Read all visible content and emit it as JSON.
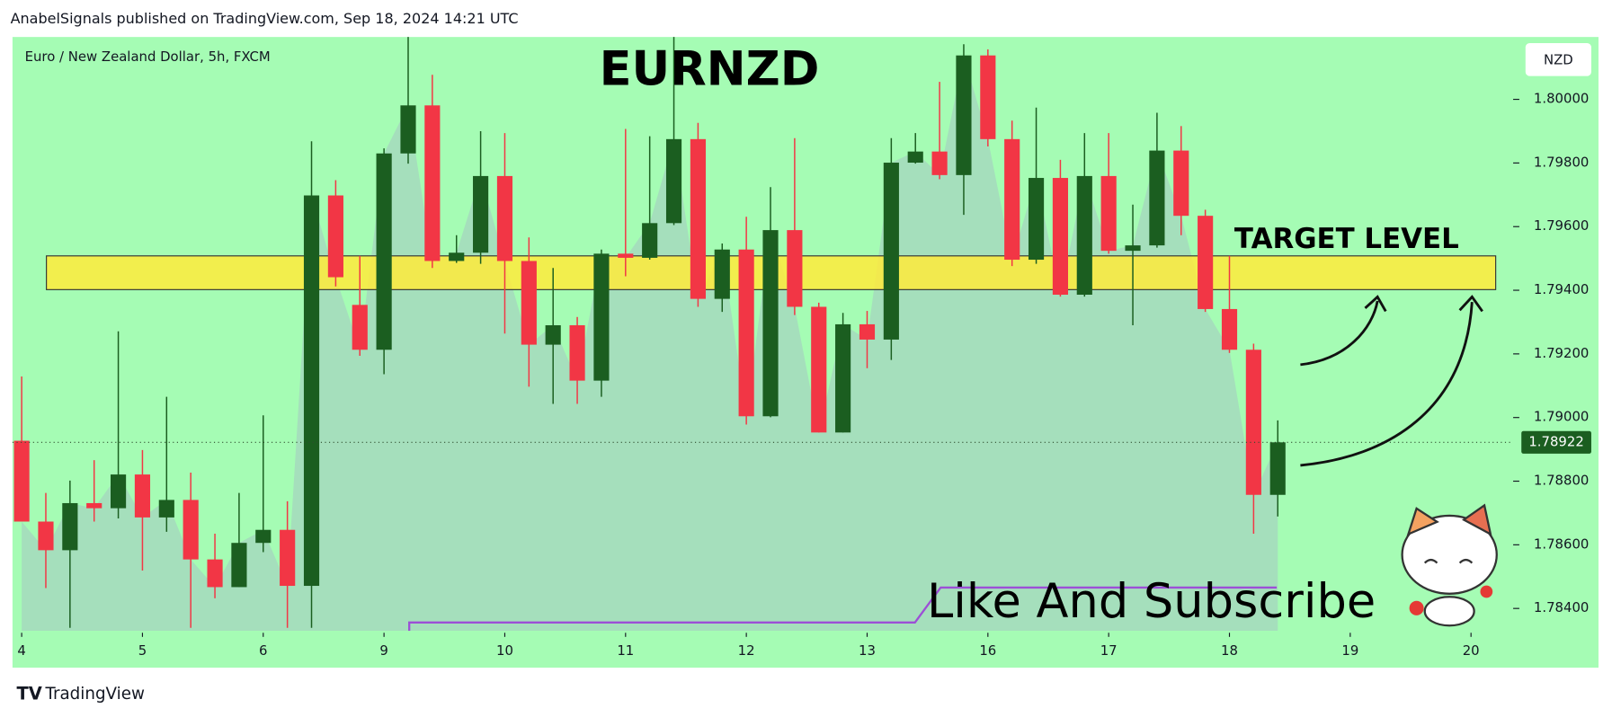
{
  "header": "AnabelSignals published on TradingView.com, Sep 18, 2024 14:21 UTC",
  "footer": "TradingView",
  "chart_data": {
    "type": "candlestick",
    "title": "EURNZD",
    "symbol": "Euro / New Zealand Dollar, 5h, FXCM",
    "currency": "NZD",
    "annotation": "Like And Subscribe",
    "target_zone": {
      "label": "TARGET LEVEL",
      "low": 1.79402,
      "high": 1.79508,
      "color": "#ffeb3b"
    },
    "up_color": "#1b5e20",
    "down_color": "#f23645",
    "xlim": [
      -0.38,
      61.66
    ],
    "xticks": [
      {
        "value": 0,
        "label": "4"
      },
      {
        "value": 5,
        "label": "5"
      },
      {
        "value": 10,
        "label": "6"
      },
      {
        "value": 15,
        "label": "9"
      },
      {
        "value": 20,
        "label": "10"
      },
      {
        "value": 25,
        "label": "11"
      },
      {
        "value": 30,
        "label": "12"
      },
      {
        "value": 35,
        "label": "13"
      },
      {
        "value": 40,
        "label": "16"
      },
      {
        "value": 45,
        "label": "17"
      },
      {
        "value": 50,
        "label": "18"
      },
      {
        "value": 55,
        "label": "19"
      },
      {
        "value": 60,
        "label": "20"
      }
    ],
    "ylim": [
      1.7833,
      1.80196
    ],
    "yticks": [
      {
        "value": 1.784,
        "label": "1.78400"
      },
      {
        "value": 1.786,
        "label": "1.78600"
      },
      {
        "value": 1.788,
        "label": "1.78800"
      },
      {
        "value": 1.79,
        "label": "1.79000"
      },
      {
        "value": 1.792,
        "label": "1.79200"
      },
      {
        "value": 1.794,
        "label": "1.79400"
      },
      {
        "value": 1.796,
        "label": "1.79600"
      },
      {
        "value": 1.798,
        "label": "1.79800"
      },
      {
        "value": 1.8,
        "label": "1.80000"
      }
    ],
    "open": [
      1.78927,
      1.78673,
      1.78583,
      1.78731,
      1.78715,
      1.78821,
      1.78686,
      1.78741,
      1.78554,
      1.78467,
      1.78606,
      1.78647,
      1.78471,
      1.79698,
      1.79354,
      1.79213,
      1.7983,
      1.79981,
      1.79492,
      1.79518,
      1.79759,
      1.79492,
      1.79229,
      1.7929,
      1.79116,
      1.79515,
      1.79502,
      1.79611,
      1.79875,
      1.79373,
      1.79528,
      1.79004,
      1.79589,
      1.79348,
      1.78953,
      1.79293,
      1.79245,
      1.79801,
      1.79836,
      1.79762,
      1.80138,
      1.79875,
      1.79496,
      1.79753,
      1.79386,
      1.79759,
      1.79524,
      1.79541,
      1.79839,
      1.79634,
      1.79341,
      1.79213,
      1.78757
    ],
    "high": [
      1.79129,
      1.78763,
      1.78802,
      1.78866,
      1.79271,
      1.78898,
      1.79065,
      1.78827,
      1.78635,
      1.78763,
      1.79007,
      1.78737,
      1.79868,
      1.79746,
      1.79508,
      1.79846,
      1.80196,
      1.80077,
      1.79573,
      1.799,
      1.79894,
      1.79566,
      1.7947,
      1.79316,
      1.79528,
      1.79907,
      1.79884,
      1.80196,
      1.79926,
      1.79547,
      1.79631,
      1.79724,
      1.79878,
      1.79361,
      1.79329,
      1.79335,
      1.79878,
      1.79894,
      1.80055,
      1.80173,
      1.80157,
      1.79933,
      1.79974,
      1.7981,
      1.79894,
      1.79894,
      1.79669,
      1.79958,
      1.79916,
      1.79653,
      1.79508,
      1.79232,
      1.78991
    ],
    "low": [
      1.78673,
      1.78464,
      1.78339,
      1.78673,
      1.78683,
      1.78519,
      1.78641,
      1.78339,
      1.78432,
      1.78467,
      1.78577,
      1.78339,
      1.78339,
      1.79412,
      1.79194,
      1.79136,
      1.79798,
      1.7947,
      1.79486,
      1.79483,
      1.79264,
      1.79097,
      1.79043,
      1.79043,
      1.79065,
      1.79444,
      1.79496,
      1.79605,
      1.79348,
      1.79332,
      1.78978,
      1.79001,
      1.79322,
      1.78953,
      1.78953,
      1.79155,
      1.79181,
      1.79798,
      1.79749,
      1.79637,
      1.79852,
      1.79476,
      1.79483,
      1.7938,
      1.7938,
      1.79515,
      1.7929,
      1.79534,
      1.79573,
      1.79332,
      1.79203,
      1.78635,
      1.78689
    ],
    "close": [
      1.78673,
      1.78583,
      1.78731,
      1.78715,
      1.78821,
      1.78686,
      1.78741,
      1.78554,
      1.78467,
      1.78606,
      1.78647,
      1.78471,
      1.79698,
      1.79441,
      1.79213,
      1.7983,
      1.79981,
      1.79492,
      1.79518,
      1.79759,
      1.79492,
      1.79229,
      1.7929,
      1.79116,
      1.79515,
      1.79502,
      1.79611,
      1.79875,
      1.79373,
      1.79528,
      1.79004,
      1.79589,
      1.79348,
      1.78953,
      1.79293,
      1.79245,
      1.79801,
      1.79836,
      1.79762,
      1.80138,
      1.79875,
      1.79496,
      1.79753,
      1.79386,
      1.79759,
      1.79524,
      1.79541,
      1.79839,
      1.79634,
      1.79341,
      1.79213,
      1.78757,
      1.78922
    ]
  }
}
